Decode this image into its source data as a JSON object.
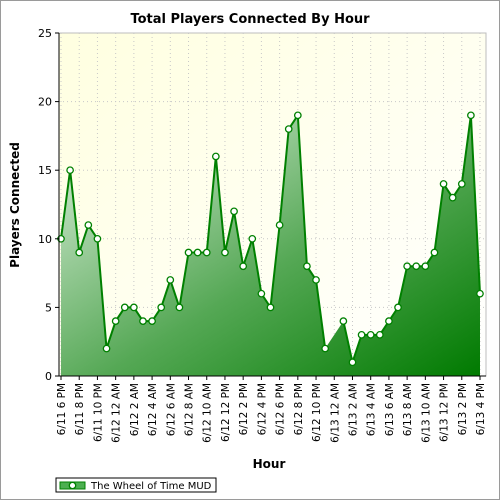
{
  "chart_data": {
    "type": "area",
    "title": "Total Players Connected By Hour",
    "xlabel": "Hour",
    "ylabel": "Players Connected",
    "ylim": [
      0,
      25
    ],
    "yticks": [
      0,
      5,
      10,
      15,
      20,
      25
    ],
    "grid": true,
    "legend_position": "bottom-left",
    "x_tick_labels": [
      "6/11 6 PM",
      "6/11 8 PM",
      "6/11 10 PM",
      "6/12 12 AM",
      "6/12 2 AM",
      "6/12 4 AM",
      "6/12 6 AM",
      "6/12 8 AM",
      "6/12 10 AM",
      "6/12 12 PM",
      "6/12 2 PM",
      "6/12 4 PM",
      "6/12 6 PM",
      "6/12 8 PM",
      "6/12 10 PM",
      "6/13 12 AM",
      "6/13 2 AM",
      "6/13 4 AM",
      "6/13 6 AM",
      "6/13 8 AM",
      "6/13 10 AM",
      "6/13 12 PM",
      "6/13 2 PM",
      "6/13 4 PM"
    ],
    "series": [
      {
        "name": "The Wheel of Time MUD",
        "color": "#008000",
        "values": [
          10,
          15,
          9,
          11,
          10,
          2,
          4,
          5,
          5,
          4,
          4,
          5,
          7,
          5,
          9,
          9,
          9,
          16,
          9,
          12,
          8,
          10,
          6,
          5,
          11,
          18,
          19,
          8,
          7,
          2,
          null,
          4,
          1,
          3,
          3,
          3,
          4,
          5,
          8,
          8,
          8,
          9,
          14,
          13,
          14,
          19,
          6
        ]
      }
    ]
  }
}
